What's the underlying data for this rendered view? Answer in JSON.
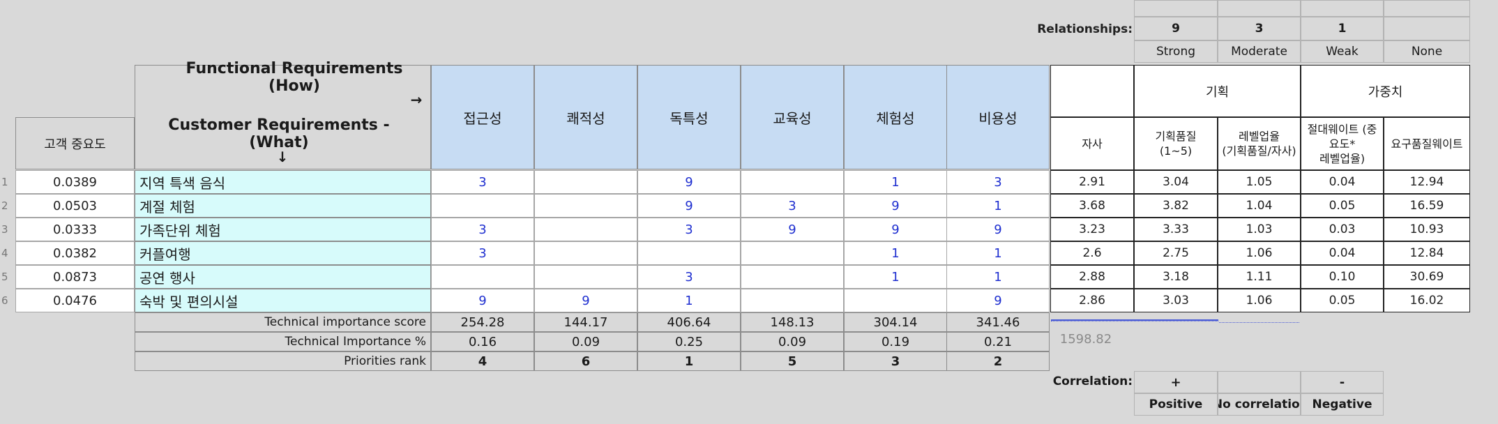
{
  "relationships": {
    "label": "Relationships:",
    "values": [
      "9",
      "3",
      "1",
      ""
    ],
    "names": [
      "Strong",
      "Moderate",
      "Weak",
      "None"
    ]
  },
  "header": {
    "functional": "Functional Requirements (How)",
    "functional_arrow": "→",
    "customer": "Customer Requirements - (What)",
    "customer_arrow": "↓",
    "importance": "고객 중요도"
  },
  "how_columns": [
    "접근성",
    "쾌적성",
    "독특성",
    "교육성",
    "체험성",
    "비용성"
  ],
  "planning": {
    "group_plan": "기획",
    "group_weight": "가중치",
    "columns": [
      {
        "line1": "자사",
        "line2": ""
      },
      {
        "line1": "기획품질",
        "line2": "(1~5)"
      },
      {
        "line1": "레벨업율",
        "line2": "(기획품질/자사)"
      },
      {
        "line1": "절대웨이트 (중",
        "line2": "요도*",
        "line3": "레벨업율)"
      },
      {
        "line1": "요구품질웨이트",
        "line2": ""
      }
    ]
  },
  "rows": [
    {
      "num": "1",
      "importance": "0.0389",
      "name": "지역 특색 음식",
      "rel": [
        "3",
        "",
        "9",
        "",
        "1",
        "3"
      ],
      "plan": [
        "2.91",
        "3.04",
        "1.05",
        "0.04",
        "12.94"
      ]
    },
    {
      "num": "2",
      "importance": "0.0503",
      "name": "계절 체험",
      "rel": [
        "",
        "",
        "9",
        "3",
        "9",
        "1"
      ],
      "plan": [
        "3.68",
        "3.82",
        "1.04",
        "0.05",
        "16.59"
      ]
    },
    {
      "num": "3",
      "importance": "0.0333",
      "name": "가족단위 체험",
      "rel": [
        "3",
        "",
        "3",
        "9",
        "9",
        "9"
      ],
      "plan": [
        "3.23",
        "3.33",
        "1.03",
        "0.03",
        "10.93"
      ]
    },
    {
      "num": "4",
      "importance": "0.0382",
      "name": "커플여행",
      "rel": [
        "3",
        "",
        "",
        "",
        "1",
        "1"
      ],
      "plan": [
        "2.6",
        "2.75",
        "1.06",
        "0.04",
        "12.84"
      ]
    },
    {
      "num": "5",
      "importance": "0.0873",
      "name": "공연 행사",
      "rel": [
        "",
        "",
        "3",
        "",
        "1",
        "1"
      ],
      "plan": [
        "2.88",
        "3.18",
        "1.11",
        "0.10",
        "30.69"
      ]
    },
    {
      "num": "6",
      "importance": "0.0476",
      "name": "숙박 및 편의시설",
      "rel": [
        "9",
        "9",
        "1",
        "",
        "",
        "9"
      ],
      "plan": [
        "2.86",
        "3.03",
        "1.06",
        "0.05",
        "16.02"
      ]
    }
  ],
  "totals": {
    "score_label": "Technical importance score",
    "score": [
      "254.28",
      "144.17",
      "406.64",
      "148.13",
      "304.14",
      "341.46"
    ],
    "pct_label": "Technical Importance %",
    "pct": [
      "0.16",
      "0.09",
      "0.25",
      "0.09",
      "0.19",
      "0.21"
    ],
    "rank_label": "Priorities rank",
    "rank": [
      "4",
      "6",
      "1",
      "5",
      "3",
      "2"
    ],
    "weight_sum": "1598.82"
  },
  "correlation": {
    "label": "Correlation:",
    "symbols": [
      "+",
      "",
      "-"
    ],
    "names": [
      "Positive",
      "No correlatior",
      "Negative"
    ]
  }
}
